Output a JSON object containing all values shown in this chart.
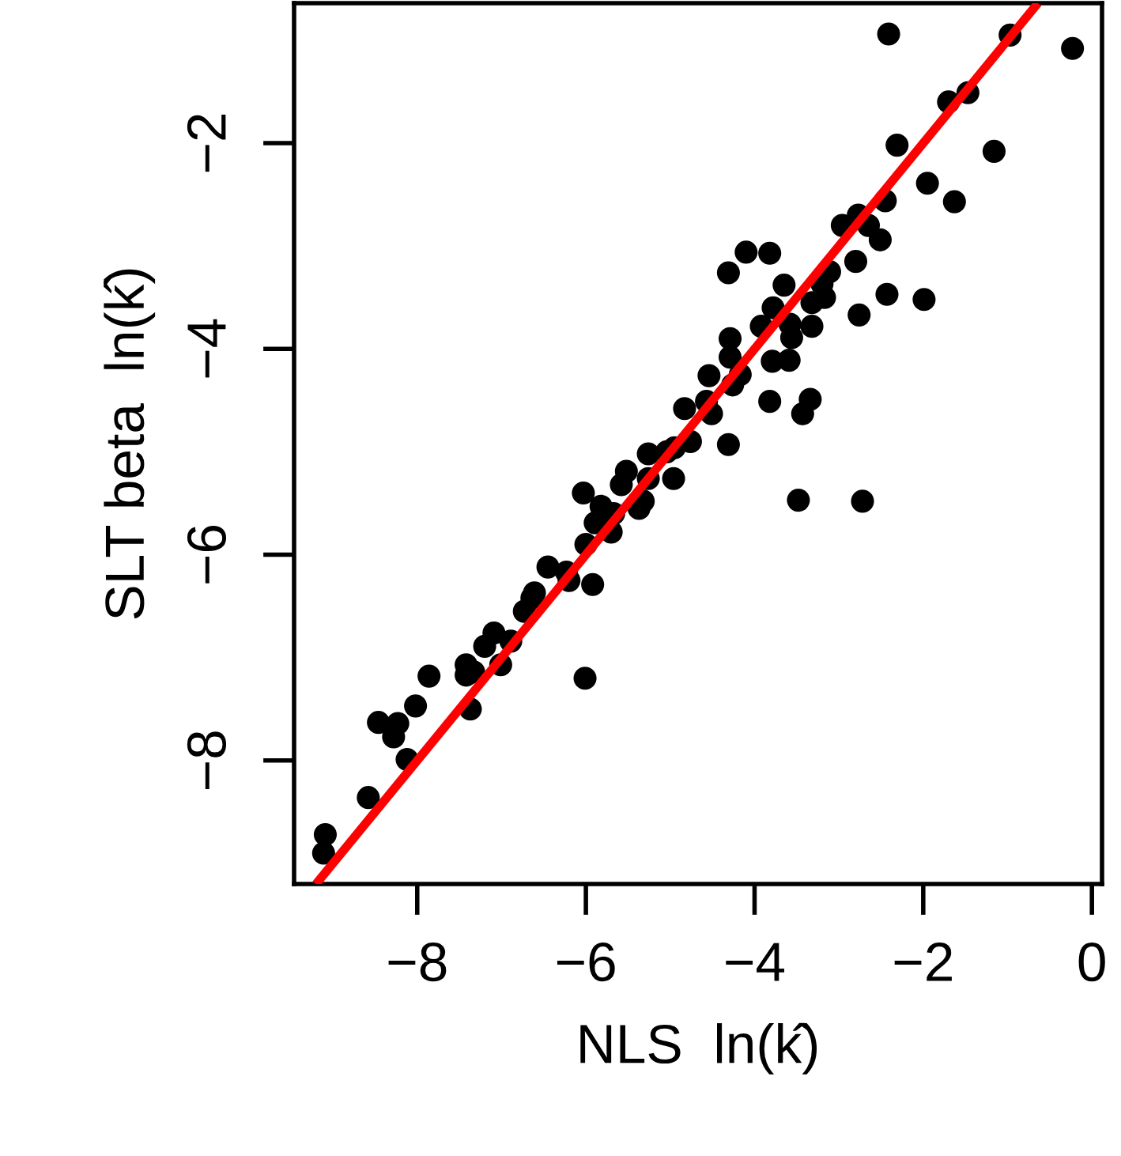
{
  "chart_data": {
    "type": "scatter",
    "xlabel": "NLS  ln(k̂)",
    "ylabel": "SLT beta  ln(k̂)",
    "xlim": [
      -9.46,
      0.12
    ],
    "ylim": [
      -9.2,
      -0.64
    ],
    "xticks": [
      {
        "value": -8,
        "label": "−8"
      },
      {
        "value": -6,
        "label": "−6"
      },
      {
        "value": -4,
        "label": "−4"
      },
      {
        "value": -2,
        "label": "−2"
      },
      0
    ],
    "yticks": [
      {
        "value": -8,
        "label": "−8"
      },
      {
        "value": -6,
        "label": "−6"
      },
      {
        "value": -4,
        "label": "−4"
      },
      {
        "value": -2,
        "label": "−2"
      }
    ],
    "grid": false,
    "series": [
      {
        "color": "#000000",
        "marker": "circle",
        "x": [
          -2.41,
          -0.97,
          -0.23,
          -1.47,
          -1.7,
          -2.31,
          -1.16,
          -1.95,
          -1.63,
          -2.45,
          -2.77,
          -2.96,
          -2.65,
          -2.51,
          -2.8,
          -4.1,
          -3.82,
          -4.31,
          -3.65,
          -3.11,
          -3.2,
          -3.17,
          -3.32,
          -3.78,
          -2.43,
          -1.99,
          -2.76,
          -3.32,
          -3.92,
          -3.58,
          -3.56,
          -4.29,
          -4.29,
          -3.79,
          -3.59,
          -4.17,
          -4.54,
          -4.26,
          -3.82,
          -3.34,
          -3.43,
          -4.57,
          -4.83,
          -4.51,
          -4.31,
          -4.76,
          -4.95,
          -5.04,
          -5.26,
          -4.96,
          -5.26,
          -5.52,
          -5.58,
          -5.32,
          -5.37,
          -6.03,
          -5.82,
          -5.67,
          -5.89,
          -5.7,
          -3.48,
          -2.72,
          -6.0,
          -5.92,
          -6.45,
          -6.23,
          -6.61,
          -6.2,
          -6.64,
          -6.73,
          -6.89,
          -7.09,
          -7.2,
          -7.01,
          -7.42,
          -7.33,
          -7.42,
          -7.86,
          -6.01,
          -7.37,
          -8.02,
          -8.46,
          -8.23,
          -8.28,
          -8.12,
          -8.58,
          -9.09,
          -9.11
        ],
        "values": [
          -0.94,
          -0.95,
          -1.08,
          -1.51,
          -1.6,
          -2.02,
          -2.08,
          -2.39,
          -2.57,
          -2.56,
          -2.7,
          -2.8,
          -2.8,
          -2.94,
          -3.15,
          -3.06,
          -3.07,
          -3.26,
          -3.38,
          -3.25,
          -3.37,
          -3.5,
          -3.55,
          -3.6,
          -3.47,
          -3.52,
          -3.67,
          -3.78,
          -3.78,
          -3.76,
          -3.89,
          -3.9,
          -4.08,
          -4.12,
          -4.11,
          -4.25,
          -4.26,
          -4.35,
          -4.51,
          -4.49,
          -4.63,
          -4.51,
          -4.58,
          -4.63,
          -4.93,
          -4.9,
          -4.96,
          -5.0,
          -5.02,
          -5.26,
          -5.26,
          -5.19,
          -5.32,
          -5.48,
          -5.55,
          -5.4,
          -5.53,
          -5.6,
          -5.69,
          -5.78,
          -5.47,
          -5.48,
          -5.9,
          -6.29,
          -6.12,
          -6.17,
          -6.37,
          -6.25,
          -6.42,
          -6.55,
          -6.84,
          -6.76,
          -6.89,
          -7.07,
          -7.07,
          -7.14,
          -7.17,
          -7.18,
          -7.2,
          -7.5,
          -7.47,
          -7.63,
          -7.64,
          -7.77,
          -7.99,
          -8.36,
          -8.72,
          -8.9
        ]
      },
      {
        "type": "line",
        "color": "#ff0000",
        "marker": "none",
        "line_style": "solid",
        "x": [
          -9.2,
          -0.64
        ],
        "values": [
          -9.2,
          -0.64
        ]
      }
    ]
  }
}
